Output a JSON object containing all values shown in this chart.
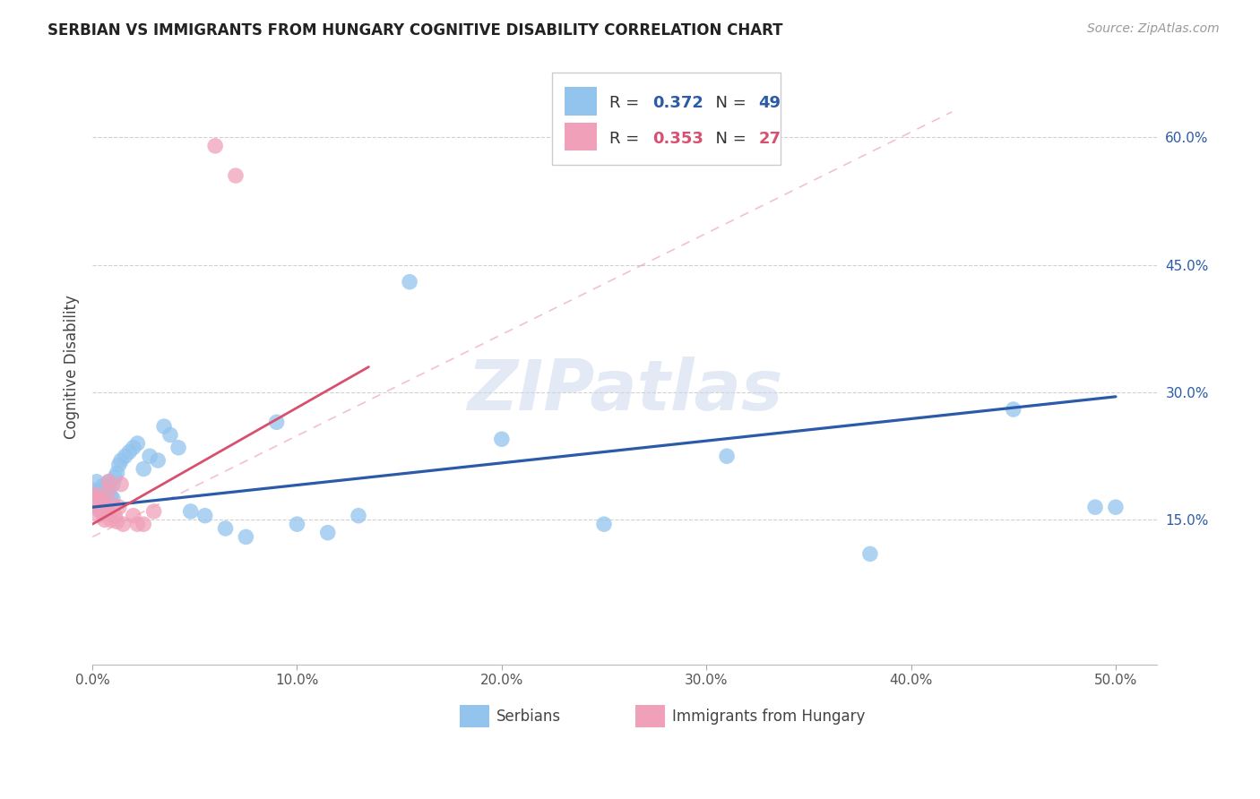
{
  "title": "SERBIAN VS IMMIGRANTS FROM HUNGARY COGNITIVE DISABILITY CORRELATION CHART",
  "source": "Source: ZipAtlas.com",
  "ylabel": "Cognitive Disability",
  "xlim": [
    0.0,
    0.52
  ],
  "ylim": [
    -0.02,
    0.68
  ],
  "xticks": [
    0.0,
    0.1,
    0.2,
    0.3,
    0.4,
    0.5
  ],
  "yticks": [
    0.15,
    0.3,
    0.45,
    0.6
  ],
  "ytick_labels": [
    "15.0%",
    "30.0%",
    "45.0%",
    "60.0%"
  ],
  "xtick_labels": [
    "0.0%",
    "10.0%",
    "20.0%",
    "30.0%",
    "40.0%",
    "50.0%"
  ],
  "watermark": "ZIPatlas",
  "legend_r1": "0.372",
  "legend_n1": "49",
  "legend_r2": "0.353",
  "legend_n2": "27",
  "legend_label1": "Serbians",
  "legend_label2": "Immigrants from Hungary",
  "blue_color": "#93C4EE",
  "pink_color": "#F0A0B8",
  "blue_line_color": "#2B5BA8",
  "pink_line_color": "#D85070",
  "background_color": "#ffffff",
  "grid_color": "#cccccc",
  "serbians_x": [
    0.001,
    0.002,
    0.002,
    0.003,
    0.003,
    0.003,
    0.004,
    0.004,
    0.004,
    0.005,
    0.005,
    0.006,
    0.006,
    0.007,
    0.007,
    0.008,
    0.009,
    0.01,
    0.01,
    0.011,
    0.012,
    0.013,
    0.014,
    0.016,
    0.018,
    0.02,
    0.022,
    0.025,
    0.028,
    0.032,
    0.035,
    0.038,
    0.042,
    0.048,
    0.055,
    0.065,
    0.075,
    0.09,
    0.1,
    0.115,
    0.13,
    0.155,
    0.2,
    0.25,
    0.31,
    0.38,
    0.45,
    0.49,
    0.5
  ],
  "serbians_y": [
    0.185,
    0.175,
    0.195,
    0.165,
    0.18,
    0.17,
    0.175,
    0.185,
    0.16,
    0.178,
    0.19,
    0.172,
    0.182,
    0.168,
    0.188,
    0.195,
    0.178,
    0.192,
    0.175,
    0.2,
    0.205,
    0.215,
    0.22,
    0.225,
    0.23,
    0.235,
    0.24,
    0.21,
    0.225,
    0.22,
    0.26,
    0.25,
    0.235,
    0.16,
    0.155,
    0.14,
    0.13,
    0.265,
    0.145,
    0.135,
    0.155,
    0.43,
    0.245,
    0.145,
    0.225,
    0.11,
    0.28,
    0.165,
    0.165
  ],
  "hungary_x": [
    0.001,
    0.002,
    0.002,
    0.003,
    0.003,
    0.004,
    0.004,
    0.005,
    0.005,
    0.006,
    0.006,
    0.007,
    0.008,
    0.008,
    0.009,
    0.01,
    0.011,
    0.012,
    0.013,
    0.014,
    0.015,
    0.02,
    0.022,
    0.025,
    0.03,
    0.06,
    0.07
  ],
  "hungary_y": [
    0.18,
    0.175,
    0.165,
    0.155,
    0.17,
    0.16,
    0.175,
    0.162,
    0.172,
    0.15,
    0.165,
    0.158,
    0.185,
    0.195,
    0.15,
    0.168,
    0.155,
    0.148,
    0.165,
    0.192,
    0.145,
    0.155,
    0.145,
    0.145,
    0.16,
    0.59,
    0.555
  ],
  "blue_trendline_x": [
    0.0,
    0.5
  ],
  "blue_trendline_y": [
    0.165,
    0.295
  ],
  "pink_trendline_x": [
    0.0,
    0.135
  ],
  "pink_trendline_y": [
    0.145,
    0.33
  ]
}
